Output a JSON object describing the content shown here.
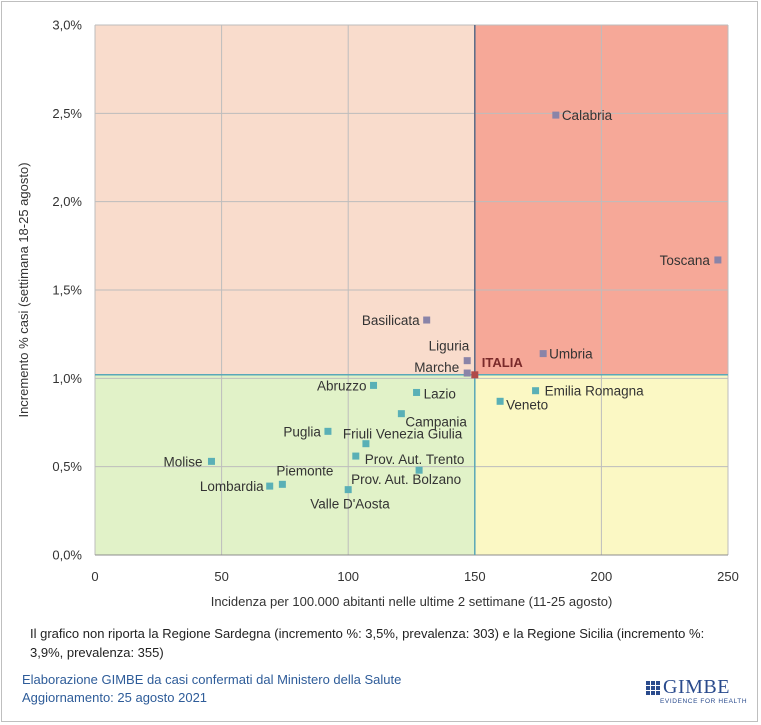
{
  "chart_data": {
    "type": "scatter",
    "title": "",
    "xlabel": "Incidenza per 100.000 abitanti nelle ultime 2 settimane (11-25 agosto)",
    "ylabel": "Incremento % casi (settimana 18-25 agosto)",
    "xlim": [
      0,
      250
    ],
    "ylim": [
      0,
      3.0
    ],
    "x_ticks": [
      "0",
      "50",
      "100",
      "150",
      "200",
      "250"
    ],
    "y_ticks": [
      "0,0%",
      "0,5%",
      "1,0%",
      "1,5%",
      "2,0%",
      "2,5%",
      "3,0%"
    ],
    "grid": true,
    "reference": {
      "x": 150,
      "y": 1.02,
      "label": "ITALIA"
    },
    "quadrant_colors": {
      "top_left": "#f9dccc",
      "top_right": "#f6a898",
      "bottom_left": "#e1f2c8",
      "bottom_right": "#fbf8c4"
    },
    "series": [
      {
        "points": [
          {
            "label": "Calabria",
            "x": 182,
            "y": 2.49
          },
          {
            "label": "Toscana",
            "x": 246,
            "y": 1.67
          },
          {
            "label": "Basilicata",
            "x": 131,
            "y": 1.33
          },
          {
            "label": "Umbria",
            "x": 177,
            "y": 1.14
          },
          {
            "label": "Liguria",
            "x": 147,
            "y": 1.1
          },
          {
            "label": "Marche",
            "x": 147,
            "y": 1.03
          }
        ]
      },
      {
        "points": [
          {
            "label": "Abruzzo",
            "x": 110,
            "y": 0.96
          },
          {
            "label": "Lazio",
            "x": 127,
            "y": 0.92
          },
          {
            "label": "Campania",
            "x": 121,
            "y": 0.8
          },
          {
            "label": "Puglia",
            "x": 92,
            "y": 0.7
          },
          {
            "label": "Friuli Venezia Giulia",
            "x": 107,
            "y": 0.63
          },
          {
            "label": "Prov. Aut. Trento",
            "x": 103,
            "y": 0.56
          },
          {
            "label": "Molise",
            "x": 46,
            "y": 0.53
          },
          {
            "label": "Prov. Aut. Bolzano",
            "x": 128,
            "y": 0.48
          },
          {
            "label": "Piemonte",
            "x": 74,
            "y": 0.4
          },
          {
            "label": "Lombardia",
            "x": 69,
            "y": 0.39
          },
          {
            "label": "Valle D'Aosta",
            "x": 100,
            "y": 0.37
          }
        ]
      },
      {
        "points": [
          {
            "label": "Emilia Romagna",
            "x": 174,
            "y": 0.93
          },
          {
            "label": "Veneto",
            "x": 160,
            "y": 0.87
          }
        ]
      }
    ],
    "series_colors": [
      "#8a84a8",
      "#5ab0b6",
      "#5ab0b6"
    ]
  },
  "footnote": "Il grafico non riporta la Regione Sardegna (incremento %: 3,5%, prevalenza: 303) e la Regione Sicilia (incremento %: 3,9%, prevalenza: 355)",
  "source_line": "Elaborazione GIMBE da casi confermati dal Ministero della Salute",
  "update_line": "Aggiornamento: 25 agosto 2021",
  "logo": {
    "text": "GIMBE",
    "tagline": "EVIDENCE FOR HEALTH"
  }
}
